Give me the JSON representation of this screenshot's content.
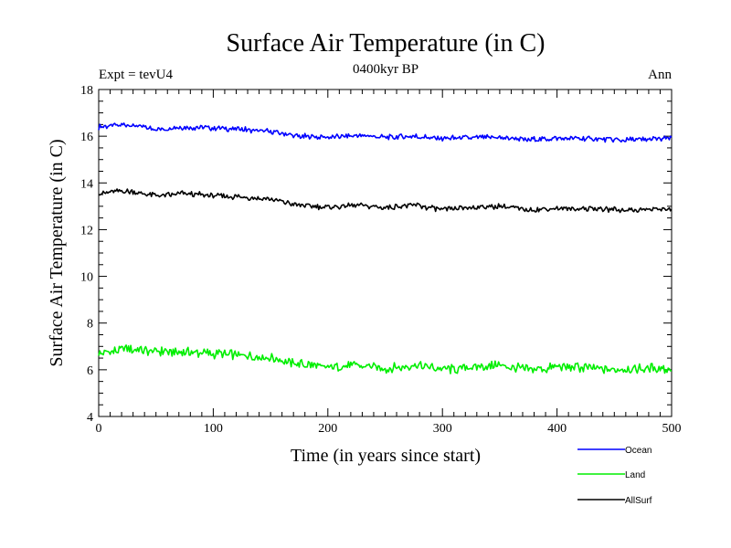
{
  "chart_data": {
    "type": "line",
    "title": "Surface Air Temperature (in C)",
    "subtitle": "0400kyr BP",
    "left_label": "Expt = tevU4",
    "right_label": "Ann",
    "xlabel": "Time (in years since start)",
    "ylabel": "Surface Air Temperature (in C)",
    "xlim": [
      0,
      500
    ],
    "ylim": [
      4,
      18
    ],
    "xticks": [
      0,
      100,
      200,
      300,
      400,
      500
    ],
    "yticks": [
      4,
      6,
      8,
      10,
      12,
      14,
      16,
      18
    ],
    "grid": false,
    "legend_position": "bottom-right",
    "x": [
      0,
      25,
      50,
      75,
      100,
      125,
      150,
      175,
      200,
      225,
      250,
      275,
      300,
      325,
      350,
      375,
      400,
      425,
      450,
      475,
      500
    ],
    "series": [
      {
        "name": "Ocean",
        "color": "#0000ff",
        "values": [
          16.4,
          16.5,
          16.3,
          16.4,
          16.35,
          16.3,
          16.2,
          16.0,
          15.95,
          16.05,
          15.95,
          16.0,
          15.9,
          15.95,
          15.95,
          15.85,
          15.9,
          15.9,
          15.85,
          15.85,
          15.9
        ]
      },
      {
        "name": "Land",
        "color": "#00ee00",
        "values": [
          6.7,
          6.9,
          6.8,
          6.75,
          6.7,
          6.6,
          6.5,
          6.25,
          6.1,
          6.2,
          6.05,
          6.2,
          6.0,
          6.1,
          6.2,
          6.0,
          6.1,
          6.1,
          6.0,
          6.05,
          6.05
        ]
      },
      {
        "name": "AllSurf",
        "color": "#000000",
        "values": [
          13.55,
          13.65,
          13.45,
          13.55,
          13.45,
          13.4,
          13.3,
          13.05,
          12.95,
          13.05,
          12.95,
          13.05,
          12.85,
          12.95,
          13.0,
          12.85,
          12.9,
          12.9,
          12.85,
          12.85,
          12.9
        ]
      }
    ]
  }
}
